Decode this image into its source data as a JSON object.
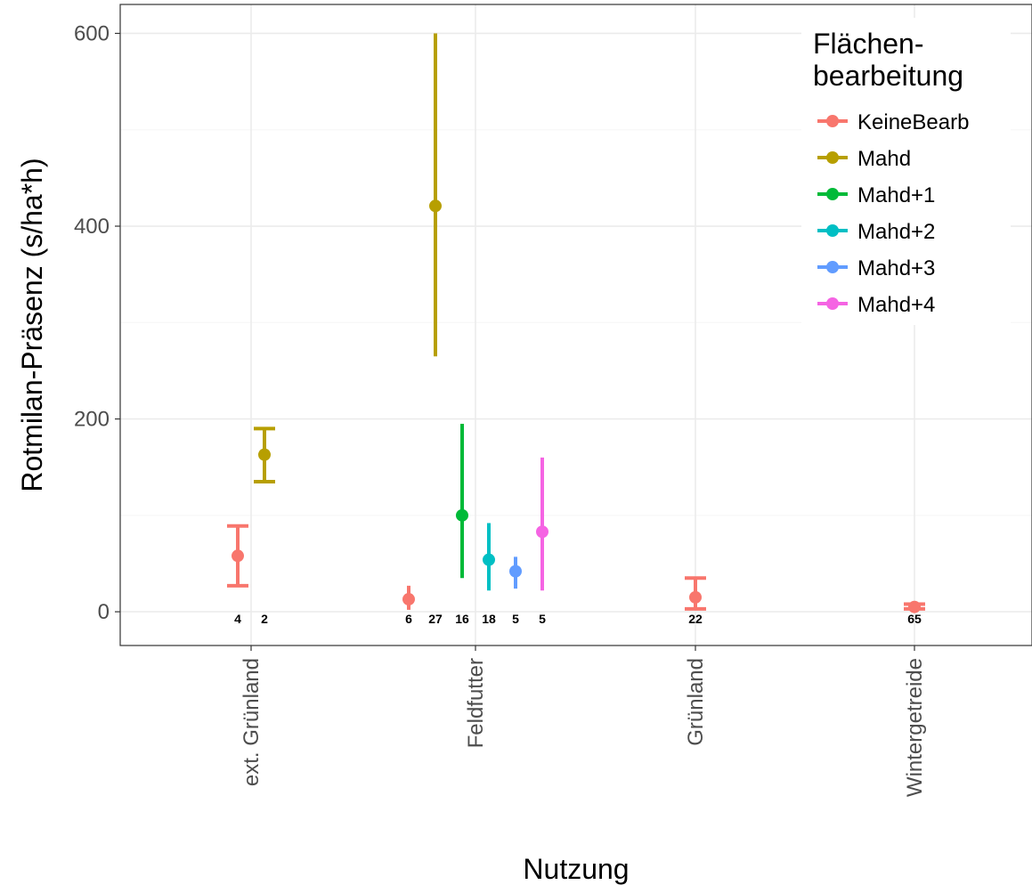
{
  "chart_data": {
    "type": "scatter",
    "xlabel": "Nutzung",
    "ylabel": "Rotmilan-Präsenz (s/ha*h)",
    "categories": [
      "ext. Grünland",
      "Feldfutter",
      "Grünland",
      "Wintergetreide"
    ],
    "ylim": [
      -35,
      630
    ],
    "yticks": [
      0,
      200,
      400,
      600
    ],
    "grid": true,
    "legend": {
      "title_lines": [
        "Flächen-",
        "bearbeitung"
      ],
      "position": "top-right"
    },
    "series": [
      {
        "name": "KeineBearb",
        "color": "#F8766D",
        "points": [
          {
            "category": "ext. Grünland",
            "y": 58,
            "ymin": 27,
            "ymax": 89,
            "n": "4",
            "cap": true
          },
          {
            "category": "Feldfutter",
            "y": 13,
            "ymin": 2,
            "ymax": 27,
            "n": "6",
            "cap": false
          },
          {
            "category": "Grünland",
            "y": 15,
            "ymin": 3,
            "ymax": 35,
            "n": "22",
            "cap": true
          },
          {
            "category": "Wintergetreide",
            "y": 5,
            "ymin": 3,
            "ymax": 8,
            "n": "65",
            "cap": true
          }
        ]
      },
      {
        "name": "Mahd",
        "color": "#B79F00",
        "points": [
          {
            "category": "ext. Grünland",
            "y": 163,
            "ymin": 135,
            "ymax": 190,
            "n": "2",
            "cap": true
          },
          {
            "category": "Feldfutter",
            "y": 421,
            "ymin": 265,
            "ymax": 600,
            "n": "27",
            "cap": false
          }
        ]
      },
      {
        "name": "Mahd+1",
        "color": "#00BA38",
        "points": [
          {
            "category": "Feldfutter",
            "y": 100,
            "ymin": 35,
            "ymax": 195,
            "n": "16",
            "cap": false
          }
        ]
      },
      {
        "name": "Mahd+2",
        "color": "#00BFC4",
        "points": [
          {
            "category": "Feldfutter",
            "y": 54,
            "ymin": 22,
            "ymax": 92,
            "n": "18",
            "cap": false
          }
        ]
      },
      {
        "name": "Mahd+3",
        "color": "#619CFF",
        "points": [
          {
            "category": "Feldfutter",
            "y": 42,
            "ymin": 24,
            "ymax": 57,
            "n": "5",
            "cap": false
          }
        ]
      },
      {
        "name": "Mahd+4",
        "color": "#F564E3",
        "points": [
          {
            "category": "Feldfutter",
            "y": 83,
            "ymin": 22,
            "ymax": 160,
            "n": "5",
            "cap": false
          }
        ]
      }
    ]
  }
}
